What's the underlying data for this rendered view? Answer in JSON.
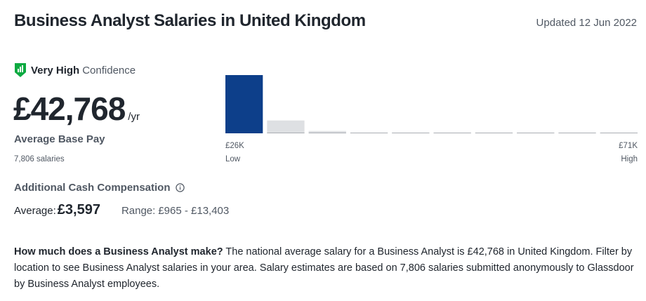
{
  "header": {
    "title": "Business Analyst Salaries in United Kingdom",
    "updated": "Updated 12 Jun 2022"
  },
  "confidence": {
    "level": "Very High",
    "suffix": "Confidence",
    "icon": "confidence-shield-icon",
    "color": "#0caa41"
  },
  "pay": {
    "amount": "£42,768",
    "unit": "/yr",
    "label": "Average Base Pay",
    "salaries_count": "7,806 salaries"
  },
  "histogram": {
    "low_value": "£26K",
    "low_label": "Low",
    "high_value": "£71K",
    "high_label": "High",
    "highlight_color": "#0d3f8a",
    "bar_color": "#dee0e3"
  },
  "chart_data": {
    "type": "bar",
    "title": "",
    "xlabel": "",
    "ylabel": "",
    "categories": [
      "1",
      "2",
      "3",
      "4",
      "5",
      "6",
      "7",
      "8",
      "9",
      "10"
    ],
    "values": [
      100,
      22,
      4,
      1,
      1,
      1,
      1,
      1,
      1,
      1
    ],
    "highlight_index": 0,
    "range": [
      "£26K",
      "£71K"
    ],
    "grid": false
  },
  "additional": {
    "title": "Additional Cash Compensation",
    "info_icon": "info-icon",
    "average_label": "Average:",
    "average_value": "£3,597",
    "range_label": "Range:",
    "range_value": "£965 - £13,403"
  },
  "description": {
    "question": "How much does a Business Analyst make?",
    "text": "The national average salary for a Business Analyst is £42,768 in United Kingdom. Filter by location to see Business Analyst salaries in your area. Salary estimates are based on 7,806 salaries submitted anonymously to Glassdoor by Business Analyst employees."
  }
}
